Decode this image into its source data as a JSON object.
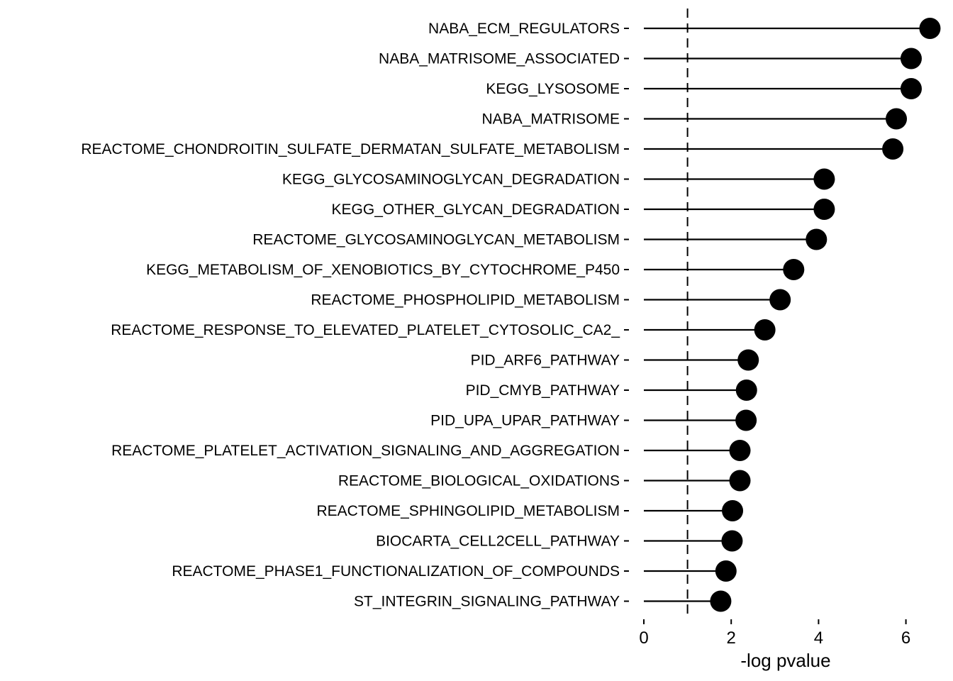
{
  "chart_data": {
    "type": "lollipop",
    "xlabel": "-log pvalue",
    "xlim": [
      0,
      6.6
    ],
    "xticks": [
      0,
      2,
      4,
      6
    ],
    "threshold": 1,
    "categories": [
      "NABA_ECM_REGULATORS",
      "NABA_MATRISOME_ASSOCIATED",
      "KEGG_LYSOSOME",
      "NABA_MATRISOME",
      "REACTOME_CHONDROITIN_SULFATE_DERMATAN_SULFATE_METABOLISM",
      "KEGG_GLYCOSAMINOGLYCAN_DEGRADATION",
      "KEGG_OTHER_GLYCAN_DEGRADATION",
      "REACTOME_GLYCOSAMINOGLYCAN_METABOLISM",
      "KEGG_METABOLISM_OF_XENOBIOTICS_BY_CYTOCHROME_P450",
      "REACTOME_PHOSPHOLIPID_METABOLISM",
      "REACTOME_RESPONSE_TO_ELEVATED_PLATELET_CYTOSOLIC_CA2_",
      "PID_ARF6_PATHWAY",
      "PID_CMYB_PATHWAY",
      "PID_UPA_UPAR_PATHWAY",
      "REACTOME_PLATELET_ACTIVATION_SIGNALING_AND_AGGREGATION",
      "REACTOME_BIOLOGICAL_OXIDATIONS",
      "REACTOME_SPHINGOLIPID_METABOLISM",
      "BIOCARTA_CELL2CELL_PATHWAY",
      "REACTOME_PHASE1_FUNCTIONALIZATION_OF_COMPOUNDS",
      "ST_INTEGRIN_SIGNALING_PATHWAY"
    ],
    "values": [
      6.55,
      6.12,
      6.12,
      5.78,
      5.7,
      4.13,
      4.13,
      3.95,
      3.43,
      3.12,
      2.77,
      2.39,
      2.35,
      2.34,
      2.2,
      2.2,
      2.03,
      2.02,
      1.88,
      1.76
    ],
    "colors": {
      "point": "#000000",
      "stem": "#000000",
      "threshold": "#000000"
    }
  }
}
